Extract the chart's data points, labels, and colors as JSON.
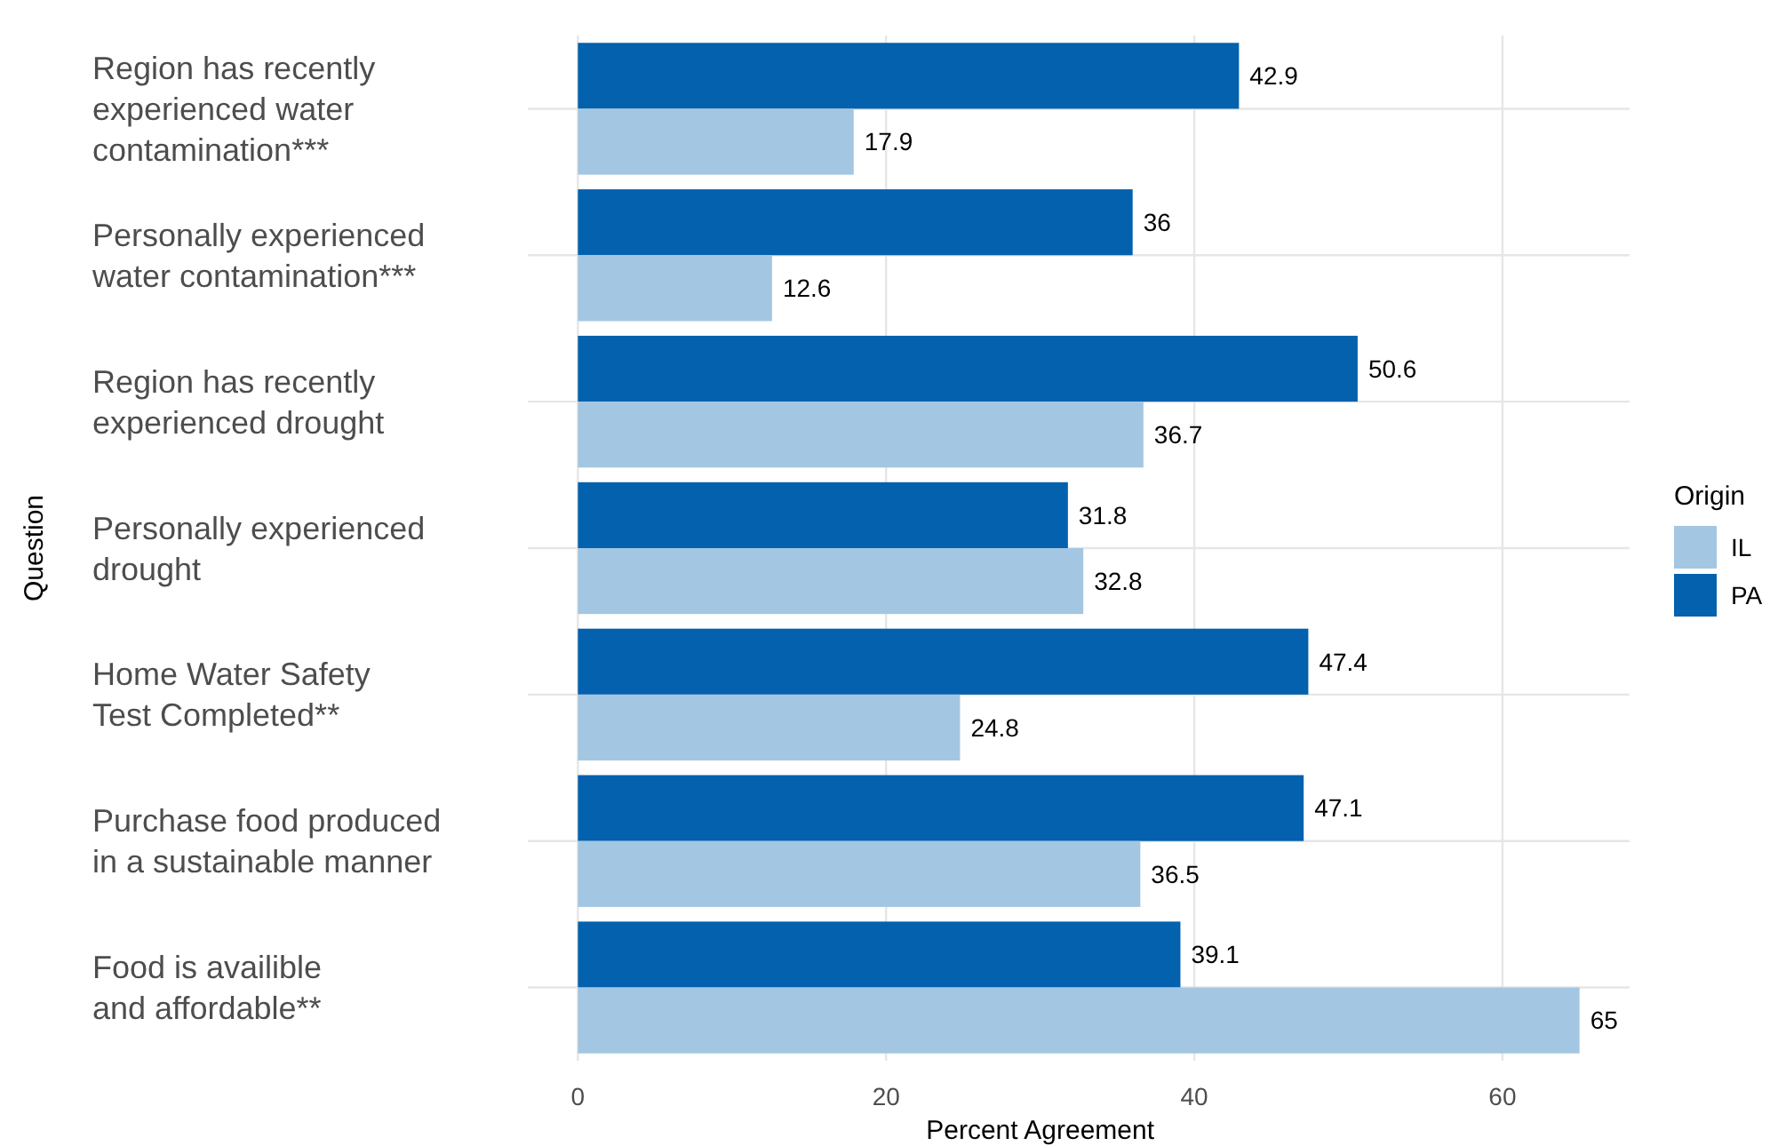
{
  "chart_data": {
    "type": "bar",
    "orientation": "horizontal",
    "xlabel": "Percent Agreement",
    "ylabel": "Question",
    "legend_title": "Origin",
    "categories": [
      "Region has recently\nexperienced water\ncontamination***",
      "Personally experienced\nwater contamination***",
      "Region has recently\nexperienced drought",
      "Personally experienced\ndrought",
      "Home Water Safety\nTest Completed**",
      "Purchase food produced\nin a sustainable manner",
      "Food is availible\nand affordable**"
    ],
    "series": [
      {
        "name": "PA",
        "color": "#0461ae",
        "values": [
          42.9,
          36,
          50.6,
          31.8,
          47.4,
          47.1,
          39.1
        ]
      },
      {
        "name": "IL",
        "color": "#a3c7e2",
        "values": [
          17.9,
          12.6,
          36.7,
          32.8,
          24.8,
          36.5,
          65
        ]
      }
    ],
    "xlim": [
      -3.25,
      68.25
    ],
    "xticks": [
      0,
      20,
      40,
      60
    ],
    "grid": true,
    "data_labels": true,
    "legend": "right"
  }
}
